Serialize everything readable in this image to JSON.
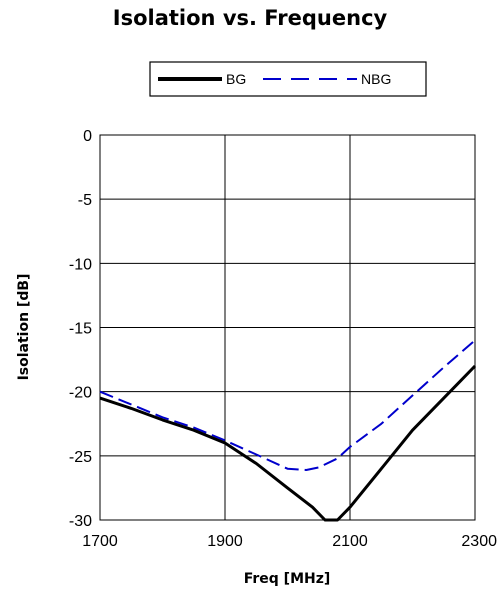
{
  "chart_data": {
    "type": "line",
    "title": "Isolation vs. Frequency",
    "xlabel": "Freq [MHz]",
    "ylabel": "Isolation [dB]",
    "xlim": [
      1700,
      2300
    ],
    "ylim": [
      -30,
      0
    ],
    "x_ticks": [
      "1700",
      "1900",
      "2100",
      "2300"
    ],
    "y_ticks": [
      "0",
      "-5",
      "-10",
      "-15",
      "-20",
      "-25",
      "-30"
    ],
    "grid": true,
    "legend_position": "top",
    "series": [
      {
        "name": "BG",
        "color": "#000000",
        "style": "solid",
        "x": [
          1700,
          1750,
          1800,
          1850,
          1900,
          1950,
          2000,
          2040,
          2060,
          2080,
          2100,
          2150,
          2200,
          2250,
          2300
        ],
        "y": [
          -20.5,
          -21.3,
          -22.2,
          -23.0,
          -24.0,
          -25.6,
          -27.5,
          -29.0,
          -30.0,
          -30.0,
          -29.0,
          -26.0,
          -23.0,
          -20.5,
          -18.0
        ]
      },
      {
        "name": "NBG",
        "color": "#0000cc",
        "style": "dashed",
        "x": [
          1700,
          1750,
          1800,
          1850,
          1900,
          1950,
          2000,
          2030,
          2050,
          2080,
          2100,
          2150,
          2200,
          2250,
          2300
        ],
        "y": [
          -20.0,
          -21.0,
          -22.0,
          -22.8,
          -23.8,
          -24.9,
          -26.0,
          -26.1,
          -25.9,
          -25.2,
          -24.3,
          -22.5,
          -20.3,
          -18.1,
          -16.0
        ]
      }
    ]
  }
}
